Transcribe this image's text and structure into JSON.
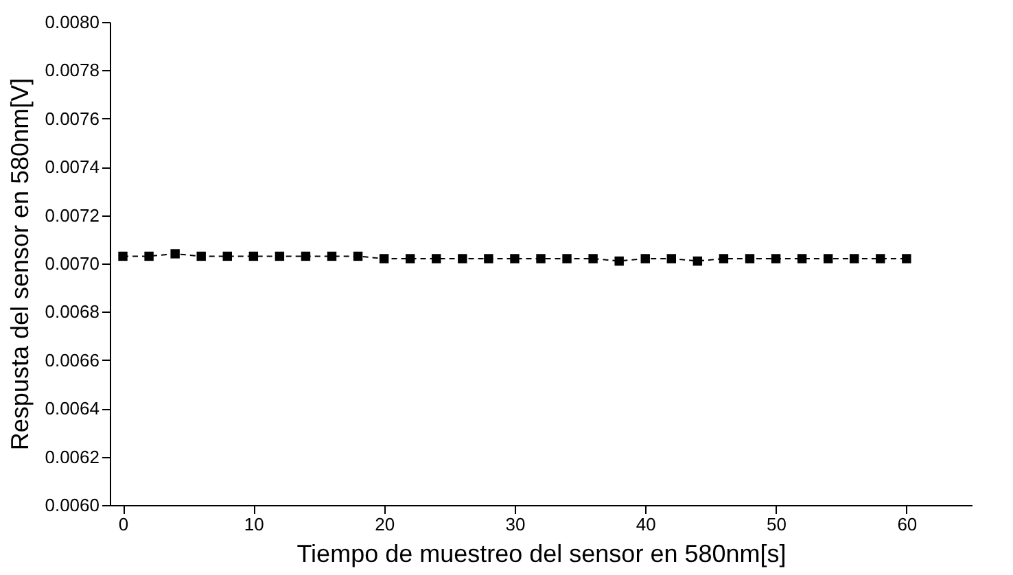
{
  "chart_data": {
    "type": "line",
    "xlabel": "Tiempo de muestreo del sensor en 580nm[s]",
    "ylabel": "Respusta del sensor en 580nm[V]",
    "x": [
      0,
      2,
      4,
      6,
      8,
      10,
      12,
      14,
      16,
      18,
      20,
      22,
      24,
      26,
      28,
      30,
      32,
      34,
      36,
      38,
      40,
      42,
      44,
      46,
      48,
      50,
      52,
      54,
      56,
      58,
      60
    ],
    "series": [
      {
        "color": "#000000",
        "values": [
          0.00703,
          0.00703,
          0.00704,
          0.00703,
          0.00703,
          0.00703,
          0.00703,
          0.00703,
          0.00703,
          0.00703,
          0.00702,
          0.00702,
          0.00702,
          0.00702,
          0.00702,
          0.00702,
          0.00702,
          0.00702,
          0.00702,
          0.00701,
          0.00702,
          0.00702,
          0.00701,
          0.00702,
          0.00702,
          0.00702,
          0.00702,
          0.00702,
          0.00702,
          0.00702,
          0.00702
        ]
      }
    ],
    "xlim": [
      -1,
      65
    ],
    "xticks": [
      0,
      10,
      20,
      30,
      40,
      50,
      60
    ],
    "ylim": [
      0.006,
      0.008
    ],
    "yticks": [
      {
        "value": 0.006,
        "label": "0.0060"
      },
      {
        "value": 0.0062,
        "label": "0.0062"
      },
      {
        "value": 0.0064,
        "label": "0.0064"
      },
      {
        "value": 0.0066,
        "label": "0.0066"
      },
      {
        "value": 0.0068,
        "label": "0.0068"
      },
      {
        "value": 0.007,
        "label": "0.0070"
      },
      {
        "value": 0.0072,
        "label": "0.0072"
      },
      {
        "value": 0.0074,
        "label": "0.0074"
      },
      {
        "value": 0.0076,
        "label": "0.0076"
      },
      {
        "value": 0.0078,
        "label": "0.0078"
      },
      {
        "value": 0.008,
        "label": "0.0080"
      }
    ],
    "marker": "square",
    "line_style": "dashed",
    "grid": false
  }
}
